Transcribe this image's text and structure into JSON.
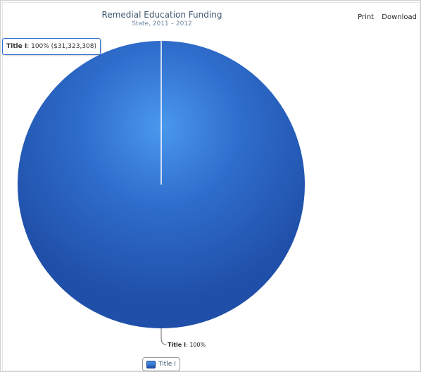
{
  "toolbar": {
    "print": "Print",
    "download": "Download"
  },
  "tooltip": {
    "name": "Title I",
    "rest": ": 100% ($31,323,308)"
  },
  "colors": {
    "slice_center": "#4a98ee",
    "slice_edge": "#1f4fa8",
    "slice_mid": "#2f6dcc"
  },
  "chart_data": {
    "type": "pie",
    "title": "Remedial Education Funding",
    "subtitle": "State, 2011 – 2012",
    "series": [
      {
        "name": "Title I",
        "slices": [
          {
            "label": "Title I",
            "percent": 100,
            "value": 31323308
          }
        ]
      }
    ],
    "data_labels": [
      {
        "name": "Title I",
        "text": ": 100%"
      }
    ],
    "legend": {
      "position": "bottom-center",
      "items": [
        "Title I"
      ]
    }
  }
}
